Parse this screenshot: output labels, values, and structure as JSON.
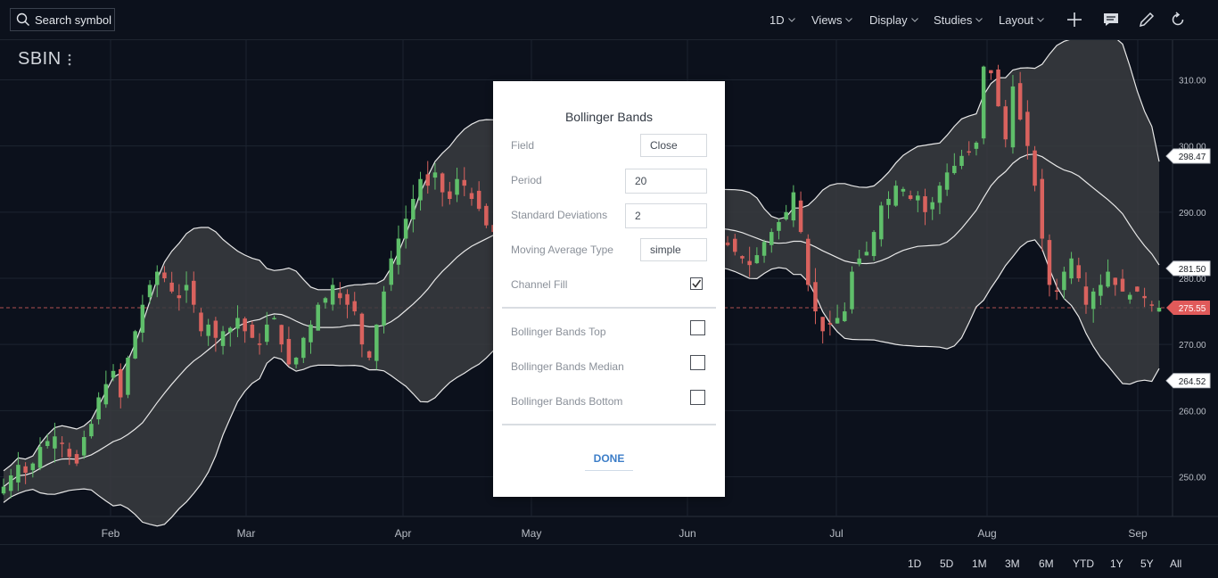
{
  "toolbar": {
    "search_label": "Search symbol",
    "menus": [
      "1D",
      "Views",
      "Display",
      "Studies",
      "Layout"
    ],
    "icons": [
      "plus-icon",
      "comment-icon",
      "pencil-icon",
      "refresh-icon"
    ]
  },
  "symbol": "SBIN",
  "chart_data": {
    "type": "candlestick",
    "symbol": "SBIN",
    "interval": "1D",
    "x_ticks": [
      "Feb",
      "Mar",
      "Apr",
      "May",
      "Jun",
      "Jul",
      "Aug",
      "Sep"
    ],
    "y_ticks": [
      "310.00",
      "300.00",
      "290.00",
      "280.00",
      "270.00",
      "260.00",
      "250.00"
    ],
    "ylim": [
      244,
      316
    ],
    "price_flags": [
      {
        "label": "298.47",
        "value": 298.47,
        "color": "#ffffff"
      },
      {
        "label": "281.50",
        "value": 281.5,
        "color": "#ffffff"
      },
      {
        "label": "275.55",
        "value": 275.55,
        "color": "#e05a5a"
      },
      {
        "label": "264.52",
        "value": 264.52,
        "color": "#ffffff"
      }
    ],
    "last_price": 275.55,
    "studies": [
      "Bollinger Bands (20, 2) channel fill"
    ],
    "colors": {
      "up": "#5fbf6a",
      "down": "#d9625e",
      "band": "#e8e8e8",
      "fill": "#3a3c40"
    },
    "closes": [
      248.5,
      250.2,
      251.8,
      250.6,
      252.0,
      254.5,
      255.4,
      256.1,
      255.0,
      253.0,
      252.0,
      256.0,
      258.0,
      262.0,
      264.0,
      266.0,
      262.0,
      268.0,
      272.0,
      276.0,
      279.0,
      281.0,
      280.0,
      278.0,
      277.0,
      279.0,
      276.0,
      272.0,
      273.0,
      271.0,
      272.0,
      272.5,
      274.0,
      272.0,
      271.0,
      270.0,
      273.0,
      274.0,
      270.0,
      267.0,
      268.0,
      271.0,
      273.0,
      276.0,
      277.0,
      279.0,
      277.0,
      276.0,
      275.0,
      270.0,
      268.0,
      273.0,
      278.0,
      283.0,
      286.0,
      289.0,
      292.0,
      295.0,
      294.0,
      296.0,
      293.0,
      292.0,
      295.0,
      294.0,
      292.0,
      290.5,
      288.0,
      287.0,
      283.0,
      281.0,
      280.0,
      278.5,
      279.0,
      280.5,
      282.0,
      284.0,
      285.0,
      286.0,
      287.0,
      287.5,
      288.0,
      289.0,
      290.5,
      292.0,
      294.0,
      292.0,
      290.0,
      289.0,
      288.0,
      287.0,
      286.0,
      285.0,
      284.0,
      283.0,
      284.5,
      285.0,
      286.0,
      285.5,
      284.5,
      285.0,
      284.0,
      283.0,
      282.0,
      283.5,
      285.5,
      287.0,
      288.5,
      290.0,
      293.0,
      287.0,
      279.0,
      275.0,
      272.0,
      273.0,
      274.0,
      275.0,
      281.0,
      283.0,
      284.0,
      287.0,
      291.0,
      292.0,
      294.0,
      293.5,
      292.0,
      292.5,
      290.0,
      291.5,
      294.0,
      296.0,
      297.0,
      298.5,
      299.0,
      300.5,
      312.0,
      311.0,
      306.0,
      301.0,
      309.0,
      304.0,
      300.0,
      294.0,
      286.0,
      279.0,
      278.0,
      281.0,
      283.0,
      280.0,
      276.0,
      278.0,
      279.0,
      281.0,
      279.0,
      278.0,
      277.5,
      278.0,
      277.0,
      276.0,
      275.55
    ],
    "bollinger": {
      "period": 20,
      "std_dev": 2,
      "ma_type": "simple",
      "field": "Close"
    }
  },
  "dialog": {
    "title": "Bollinger Bands",
    "fields": [
      {
        "label": "Field",
        "value": "Close"
      },
      {
        "label": "Period",
        "value": "20"
      },
      {
        "label": "Standard Deviations",
        "value": "2"
      },
      {
        "label": "Moving Average Type",
        "value": "simple"
      }
    ],
    "channel_fill_label": "Channel Fill",
    "channel_fill_checked": true,
    "outputs": [
      {
        "label": "Bollinger Bands Top",
        "checked": false
      },
      {
        "label": "Bollinger Bands Median",
        "checked": false
      },
      {
        "label": "Bollinger Bands Bottom",
        "checked": false
      }
    ],
    "done_label": "DONE"
  },
  "ranges": [
    "1D",
    "5D",
    "1M",
    "3M",
    "6M",
    "YTD",
    "1Y",
    "5Y",
    "All"
  ]
}
